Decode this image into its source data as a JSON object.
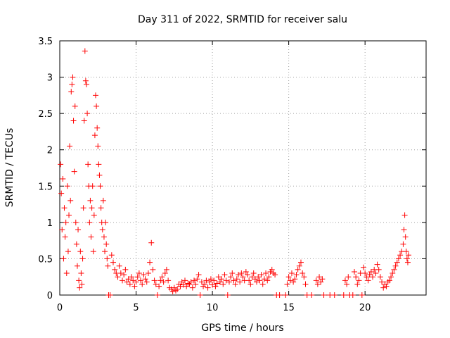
{
  "chart_data": {
    "type": "scatter",
    "title": "Day 311 of 2022, SRMTID for receiver salu",
    "xlabel": "GPS time / hours",
    "ylabel": "SRMTID / TECUs",
    "xlim": [
      0,
      24
    ],
    "ylim": [
      0,
      3.5
    ],
    "x_ticks": [
      "0",
      "5",
      "10",
      "15",
      "20"
    ],
    "x_tick_values": [
      0,
      5,
      10,
      15,
      20
    ],
    "y_ticks": [
      "0",
      "0.5",
      "1",
      "1.5",
      "2",
      "2.5",
      "3",
      "3.5"
    ],
    "y_tick_values": [
      0,
      0.5,
      1,
      1.5,
      2,
      2.5,
      3,
      3.5
    ],
    "grid": true,
    "marker": "plus",
    "series": [
      {
        "name": "SRMTID",
        "color": "#ff0000",
        "points": [
          [
            0.05,
            1.8
          ],
          [
            0.1,
            1.4
          ],
          [
            0.15,
            0.9
          ],
          [
            0.2,
            1.6
          ],
          [
            0.25,
            0.5
          ],
          [
            0.3,
            1.2
          ],
          [
            0.35,
            0.8
          ],
          [
            0.4,
            1.0
          ],
          [
            0.45,
            0.3
          ],
          [
            0.5,
            1.5
          ],
          [
            0.55,
            0.6
          ],
          [
            0.6,
            1.1
          ],
          [
            0.65,
            2.05
          ],
          [
            0.7,
            1.3
          ],
          [
            0.75,
            2.8
          ],
          [
            0.8,
            2.9
          ],
          [
            0.85,
            3.0
          ],
          [
            0.9,
            2.4
          ],
          [
            0.95,
            1.7
          ],
          [
            1.0,
            2.6
          ],
          [
            1.05,
            1.0
          ],
          [
            1.1,
            0.7
          ],
          [
            1.15,
            0.4
          ],
          [
            1.2,
            0.9
          ],
          [
            1.25,
            0.2
          ],
          [
            1.3,
            0.1
          ],
          [
            1.35,
            0.6
          ],
          [
            1.4,
            0.3
          ],
          [
            1.45,
            0.15
          ],
          [
            1.5,
            0.5
          ],
          [
            1.55,
            1.2
          ],
          [
            1.6,
            2.4
          ],
          [
            1.65,
            3.36
          ],
          [
            1.7,
            2.95
          ],
          [
            1.75,
            2.9
          ],
          [
            1.8,
            2.5
          ],
          [
            1.85,
            1.8
          ],
          [
            1.9,
            1.5
          ],
          [
            1.95,
            1.0
          ],
          [
            2.0,
            1.3
          ],
          [
            2.05,
            0.8
          ],
          [
            2.1,
            1.2
          ],
          [
            2.15,
            1.5
          ],
          [
            2.2,
            0.6
          ],
          [
            2.25,
            1.1
          ],
          [
            2.3,
            2.2
          ],
          [
            2.35,
            2.75
          ],
          [
            2.4,
            2.6
          ],
          [
            2.45,
            2.3
          ],
          [
            2.5,
            2.05
          ],
          [
            2.55,
            1.8
          ],
          [
            2.6,
            1.65
          ],
          [
            2.65,
            1.5
          ],
          [
            2.7,
            1.2
          ],
          [
            2.75,
            1.0
          ],
          [
            2.8,
            0.9
          ],
          [
            2.85,
            1.3
          ],
          [
            2.9,
            0.8
          ],
          [
            2.95,
            0.6
          ],
          [
            3.0,
            1.0
          ],
          [
            3.05,
            0.7
          ],
          [
            3.1,
            0.5
          ],
          [
            3.15,
            0.4
          ],
          [
            3.2,
            0.0
          ],
          [
            3.3,
            0.0
          ],
          [
            3.4,
            0.55
          ],
          [
            3.5,
            0.45
          ],
          [
            3.6,
            0.35
          ],
          [
            3.7,
            0.3
          ],
          [
            3.8,
            0.25
          ],
          [
            3.9,
            0.4
          ],
          [
            4.0,
            0.3
          ],
          [
            4.1,
            0.2
          ],
          [
            4.2,
            0.28
          ],
          [
            4.3,
            0.35
          ],
          [
            4.4,
            0.18
          ],
          [
            4.5,
            0.22
          ],
          [
            4.6,
            0.15
          ],
          [
            4.7,
            0.25
          ],
          [
            4.8,
            0.2
          ],
          [
            4.9,
            0.12
          ],
          [
            5.0,
            0.18
          ],
          [
            5.1,
            0.25
          ],
          [
            5.2,
            0.3
          ],
          [
            5.3,
            0.2
          ],
          [
            5.4,
            0.15
          ],
          [
            5.5,
            0.28
          ],
          [
            5.6,
            0.22
          ],
          [
            5.7,
            0.18
          ],
          [
            5.8,
            0.3
          ],
          [
            5.9,
            0.45
          ],
          [
            6.0,
            0.72
          ],
          [
            6.1,
            0.35
          ],
          [
            6.2,
            0.2
          ],
          [
            6.3,
            0.15
          ],
          [
            6.4,
            0.0
          ],
          [
            6.5,
            0.12
          ],
          [
            6.6,
            0.2
          ],
          [
            6.7,
            0.25
          ],
          [
            6.8,
            0.18
          ],
          [
            6.9,
            0.3
          ],
          [
            7.0,
            0.35
          ],
          [
            7.1,
            0.2
          ],
          [
            7.2,
            0.1
          ],
          [
            7.3,
            0.08
          ],
          [
            7.4,
            0.05
          ],
          [
            7.5,
            0.1
          ],
          [
            7.6,
            0.06
          ],
          [
            7.7,
            0.08
          ],
          [
            7.8,
            0.15
          ],
          [
            7.9,
            0.12
          ],
          [
            8.0,
            0.18
          ],
          [
            8.1,
            0.14
          ],
          [
            8.2,
            0.2
          ],
          [
            8.3,
            0.12
          ],
          [
            8.4,
            0.16
          ],
          [
            8.5,
            0.15
          ],
          [
            8.6,
            0.18
          ],
          [
            8.7,
            0.1
          ],
          [
            8.8,
            0.2
          ],
          [
            8.9,
            0.15
          ],
          [
            9.0,
            0.22
          ],
          [
            9.1,
            0.28
          ],
          [
            9.2,
            0.0
          ],
          [
            9.3,
            0.18
          ],
          [
            9.4,
            0.12
          ],
          [
            9.5,
            0.15
          ],
          [
            9.6,
            0.2
          ],
          [
            9.7,
            0.1
          ],
          [
            9.8,
            0.18
          ],
          [
            9.9,
            0.22
          ],
          [
            10.0,
            0.14
          ],
          [
            10.1,
            0.2
          ],
          [
            10.2,
            0.12
          ],
          [
            10.3,
            0.16
          ],
          [
            10.4,
            0.25
          ],
          [
            10.5,
            0.18
          ],
          [
            10.6,
            0.22
          ],
          [
            10.7,
            0.15
          ],
          [
            10.8,
            0.28
          ],
          [
            10.9,
            0.2
          ],
          [
            11.0,
            0.0
          ],
          [
            11.1,
            0.18
          ],
          [
            11.2,
            0.25
          ],
          [
            11.3,
            0.3
          ],
          [
            11.4,
            0.2
          ],
          [
            11.5,
            0.15
          ],
          [
            11.6,
            0.22
          ],
          [
            11.7,
            0.28
          ],
          [
            11.8,
            0.18
          ],
          [
            11.9,
            0.3
          ],
          [
            12.0,
            0.25
          ],
          [
            12.1,
            0.2
          ],
          [
            12.2,
            0.32
          ],
          [
            12.3,
            0.28
          ],
          [
            12.4,
            0.2
          ],
          [
            12.5,
            0.15
          ],
          [
            12.6,
            0.25
          ],
          [
            12.7,
            0.3
          ],
          [
            12.8,
            0.22
          ],
          [
            12.9,
            0.18
          ],
          [
            13.0,
            0.25
          ],
          [
            13.1,
            0.2
          ],
          [
            13.2,
            0.28
          ],
          [
            13.3,
            0.15
          ],
          [
            13.4,
            0.22
          ],
          [
            13.5,
            0.3
          ],
          [
            13.6,
            0.2
          ],
          [
            13.7,
            0.25
          ],
          [
            13.8,
            0.32
          ],
          [
            13.9,
            0.35
          ],
          [
            14.0,
            0.3
          ],
          [
            14.1,
            0.28
          ],
          [
            14.2,
            0.0
          ],
          [
            14.4,
            0.0
          ],
          [
            14.8,
            0.0
          ],
          [
            14.9,
            0.15
          ],
          [
            15.0,
            0.25
          ],
          [
            15.1,
            0.2
          ],
          [
            15.2,
            0.3
          ],
          [
            15.3,
            0.18
          ],
          [
            15.4,
            0.22
          ],
          [
            15.5,
            0.28
          ],
          [
            15.6,
            0.35
          ],
          [
            15.7,
            0.4
          ],
          [
            15.8,
            0.45
          ],
          [
            15.9,
            0.3
          ],
          [
            16.0,
            0.25
          ],
          [
            16.1,
            0.15
          ],
          [
            16.2,
            0.0
          ],
          [
            16.5,
            0.0
          ],
          [
            16.8,
            0.2
          ],
          [
            16.9,
            0.15
          ],
          [
            17.0,
            0.25
          ],
          [
            17.1,
            0.18
          ],
          [
            17.2,
            0.22
          ],
          [
            17.3,
            0.0
          ],
          [
            17.7,
            0.0
          ],
          [
            18.0,
            0.0
          ],
          [
            18.6,
            0.0
          ],
          [
            18.7,
            0.2
          ],
          [
            18.8,
            0.15
          ],
          [
            18.9,
            0.25
          ],
          [
            19.0,
            0.0
          ],
          [
            19.2,
            0.0
          ],
          [
            19.3,
            0.32
          ],
          [
            19.4,
            0.25
          ],
          [
            19.5,
            0.15
          ],
          [
            19.6,
            0.2
          ],
          [
            19.7,
            0.3
          ],
          [
            19.8,
            0.0
          ],
          [
            19.9,
            0.38
          ],
          [
            20.0,
            0.3
          ],
          [
            20.1,
            0.25
          ],
          [
            20.2,
            0.2
          ],
          [
            20.3,
            0.28
          ],
          [
            20.4,
            0.32
          ],
          [
            20.5,
            0.25
          ],
          [
            20.6,
            0.35
          ],
          [
            20.7,
            0.3
          ],
          [
            20.8,
            0.42
          ],
          [
            20.9,
            0.35
          ],
          [
            21.0,
            0.25
          ],
          [
            21.1,
            0.18
          ],
          [
            21.2,
            0.1
          ],
          [
            21.3,
            0.15
          ],
          [
            21.4,
            0.12
          ],
          [
            21.5,
            0.18
          ],
          [
            21.6,
            0.2
          ],
          [
            21.7,
            0.25
          ],
          [
            21.8,
            0.3
          ],
          [
            21.9,
            0.35
          ],
          [
            22.0,
            0.4
          ],
          [
            22.1,
            0.45
          ],
          [
            22.2,
            0.5
          ],
          [
            22.3,
            0.55
          ],
          [
            22.4,
            0.6
          ],
          [
            22.5,
            0.7
          ],
          [
            22.55,
            0.9
          ],
          [
            22.6,
            1.1
          ],
          [
            22.65,
            0.8
          ],
          [
            22.7,
            0.6
          ],
          [
            22.75,
            0.5
          ],
          [
            22.8,
            0.45
          ],
          [
            22.85,
            0.55
          ]
        ]
      }
    ]
  }
}
